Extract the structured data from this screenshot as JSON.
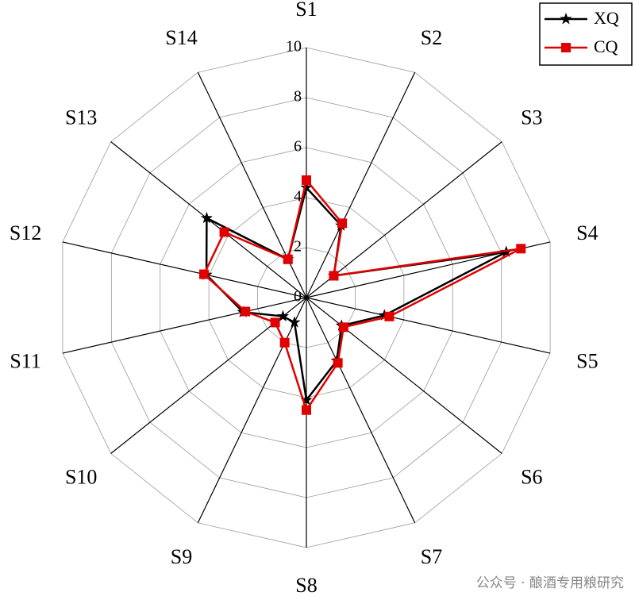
{
  "chart_data": {
    "type": "radar",
    "categories": [
      "S1",
      "S2",
      "S3",
      "S4",
      "S5",
      "S6",
      "S7",
      "S8",
      "S9",
      "S10",
      "S11",
      "S12",
      "S13",
      "S14"
    ],
    "series": [
      {
        "name": "XQ",
        "color": "#000000",
        "marker": "star",
        "values": [
          4.4,
          3.2,
          1.4,
          8.2,
          3.2,
          1.8,
          2.8,
          4.1,
          1.1,
          1.2,
          2.6,
          4.1,
          5.1,
          1.7
        ]
      },
      {
        "name": "CQ",
        "color": "#e00000",
        "marker": "square",
        "values": [
          4.7,
          3.3,
          1.4,
          8.8,
          3.4,
          1.9,
          2.9,
          4.5,
          2.0,
          1.6,
          2.5,
          4.2,
          4.2,
          1.7
        ]
      }
    ],
    "ylim": [
      0,
      10
    ],
    "yticks": [
      0,
      2,
      4,
      6,
      8,
      10
    ],
    "grid": true,
    "legend": "top-right",
    "watermark": "公众号 · 酿酒专用粮研究"
  }
}
